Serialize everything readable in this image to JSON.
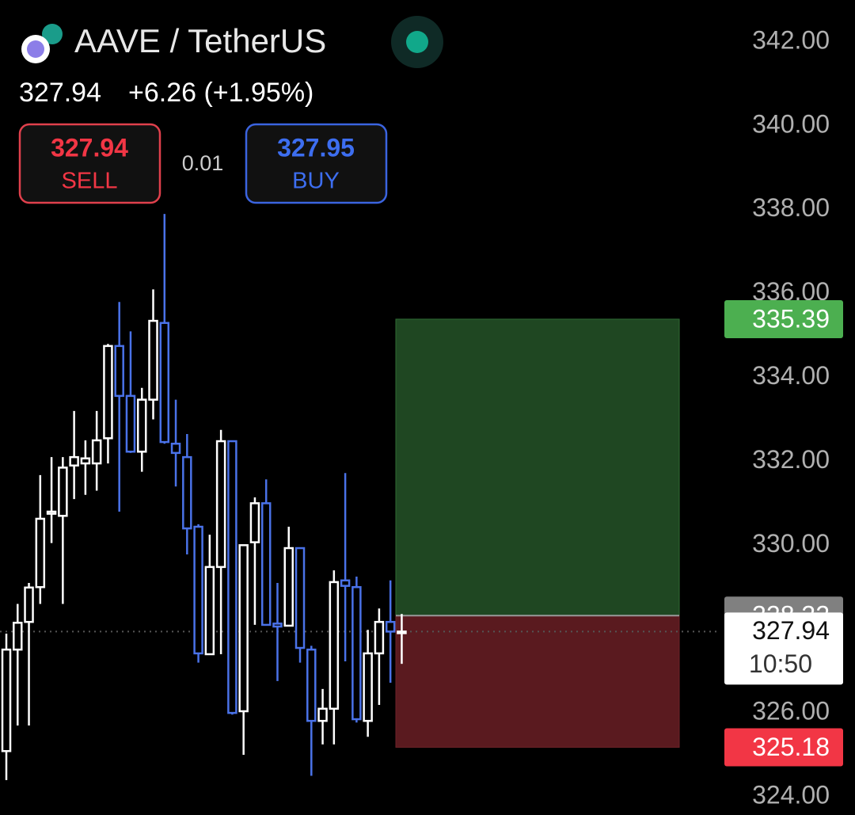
{
  "header": {
    "title": "AAVE / TetherUS",
    "last": "327.94",
    "change": "+6.26 (+1.95%)"
  },
  "trade": {
    "sell_price": "327.94",
    "sell_label": "SELL",
    "spread": "0.01",
    "buy_price": "327.95",
    "buy_label": "BUY"
  },
  "chart_data": {
    "type": "candlestick",
    "up_color": "#ffffff",
    "down_color": "#4a72e8",
    "open": [
      325.09,
      327.51,
      328.17,
      329.0,
      330.75,
      330.7,
      331.9,
      331.95,
      331.95,
      332.55,
      334.75,
      333.56,
      332.23,
      333.47,
      335.3,
      332.42,
      332.1,
      330.44,
      327.4,
      329.48,
      332.48,
      326.04,
      330.07,
      331.0,
      328.13,
      328.08,
      329.93,
      327.51,
      325.81,
      326.1,
      329.16,
      329.0,
      325.81,
      327.42,
      328.17,
      327.94
    ],
    "high": [
      327.89,
      328.6,
      329.1,
      331.67,
      332.1,
      332.1,
      333.2,
      332.5,
      333.2,
      334.8,
      335.8,
      335.1,
      333.75,
      336.1,
      337.9,
      333.47,
      332.65,
      330.5,
      330.25,
      332.75,
      332.48,
      330.0,
      331.14,
      331.57,
      329.1,
      330.44,
      329.93,
      327.6,
      326.57,
      329.4,
      331.72,
      329.25,
      327.98,
      328.49,
      329.16,
      328.36
    ],
    "low": [
      324.4,
      325.7,
      325.7,
      328.6,
      330.05,
      328.6,
      331.1,
      331.2,
      331.3,
      331.95,
      330.8,
      332.2,
      331.75,
      333.0,
      332.42,
      331.4,
      329.78,
      327.2,
      327.4,
      327.4,
      325.96,
      325.0,
      328.1,
      328.1,
      326.76,
      328.06,
      327.2,
      324.5,
      325.25,
      325.25,
      327.23,
      325.77,
      325.43,
      326.19,
      326.72,
      327.17
    ],
    "close": [
      327.51,
      328.15,
      328.99,
      330.63,
      330.8,
      331.85,
      332.1,
      332.07,
      332.5,
      334.75,
      333.56,
      332.23,
      333.47,
      335.35,
      332.46,
      332.2,
      330.4,
      327.42,
      329.48,
      332.48,
      326.0,
      330.0,
      331.0,
      328.1,
      328.06,
      329.93,
      327.55,
      325.81,
      326.1,
      329.12,
      329.03,
      325.85,
      327.42,
      328.17,
      327.94,
      327.94
    ],
    "ylim": [
      324,
      342
    ],
    "yticks": [
      {
        "value": 324,
        "label": "324.00"
      },
      {
        "value": 326,
        "label": "326.00"
      },
      {
        "value": 328,
        "label": "328.00"
      },
      {
        "value": 330,
        "label": "330.00"
      },
      {
        "value": 332,
        "label": "332.00"
      },
      {
        "value": 334,
        "label": "334.00"
      },
      {
        "value": 336,
        "label": "336.00"
      },
      {
        "value": 338,
        "label": "338.00"
      },
      {
        "value": 340,
        "label": "340.00"
      },
      {
        "value": 342,
        "label": "342.00"
      }
    ],
    "position": {
      "take_profit": 335.39,
      "entry": 328.32,
      "stop_loss": 325.18,
      "tp_color": "#1f4722",
      "sl_color": "#5a1a1f"
    },
    "current_price": 327.94,
    "countdown": "10:50"
  }
}
